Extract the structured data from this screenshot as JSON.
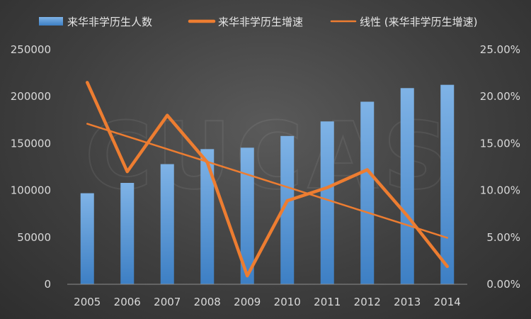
{
  "chart_data": {
    "type": "bar",
    "categories": [
      "2005",
      "2006",
      "2007",
      "2008",
      "2009",
      "2010",
      "2011",
      "2012",
      "2013",
      "2014"
    ],
    "series": [
      {
        "name": "来华非学历生人数",
        "type": "bar",
        "axis": "left",
        "color": "#5b9bd5",
        "values": [
          97000,
          108000,
          128000,
          144000,
          145500,
          158000,
          173500,
          194500,
          209000,
          212500
        ]
      },
      {
        "name": "来华非学历生增速",
        "type": "line",
        "axis": "right",
        "color": "#ed7d31",
        "values": [
          0.215,
          0.12,
          0.18,
          0.13,
          0.009,
          0.089,
          0.103,
          0.122,
          0.073,
          0.019
        ]
      },
      {
        "name": "线性 (来华非学历生增速)",
        "type": "trendline",
        "axis": "right",
        "color": "#ed7d31",
        "values": [
          0.171,
          0.1575,
          0.144,
          0.1305,
          0.117,
          0.1035,
          0.09,
          0.0765,
          0.063,
          0.0495
        ]
      }
    ],
    "y_left": {
      "min": 0,
      "max": 250000,
      "ticks": [
        "0",
        "50000",
        "100000",
        "150000",
        "200000",
        "250000"
      ]
    },
    "y_right": {
      "min": 0,
      "max": 0.25,
      "ticks": [
        "0.00%",
        "5.00%",
        "10.00%",
        "15.00%",
        "20.00%",
        "25.00%"
      ]
    },
    "legend_position": "top",
    "grid": false,
    "watermark": "CUCAS"
  }
}
